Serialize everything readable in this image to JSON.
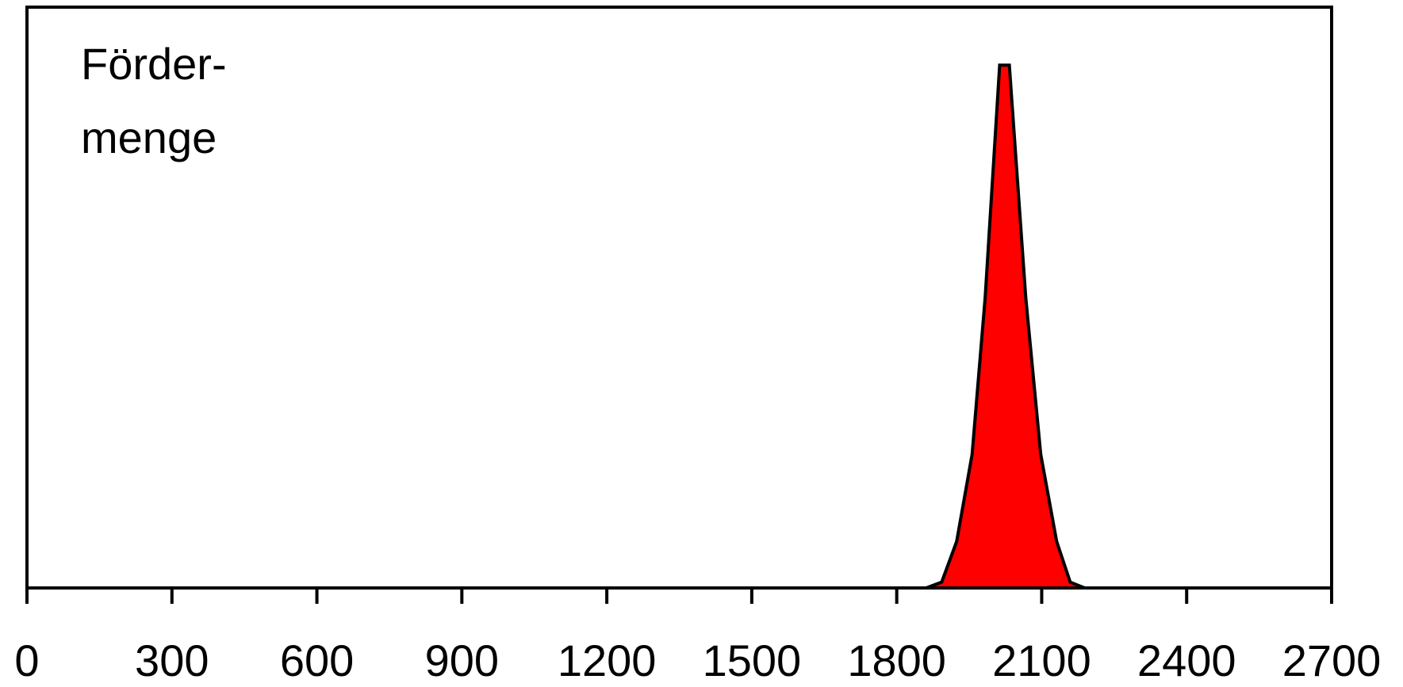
{
  "chart_data": {
    "type": "area",
    "annotation": [
      "Förder-",
      "menge"
    ],
    "x": [
      1861,
      1893,
      1924,
      1956,
      1983,
      2013,
      2033,
      2067,
      2098,
      2131,
      2159,
      2189
    ],
    "values": [
      0,
      1,
      8,
      23,
      50,
      90,
      90,
      50,
      23,
      8,
      1,
      0
    ],
    "color": "#ff0000",
    "xlim": [
      0,
      2700
    ],
    "xticks": [
      0,
      300,
      600,
      900,
      1200,
      1500,
      1800,
      2100,
      2400,
      2700
    ],
    "ylim": [
      0,
      100
    ],
    "grid": false
  }
}
